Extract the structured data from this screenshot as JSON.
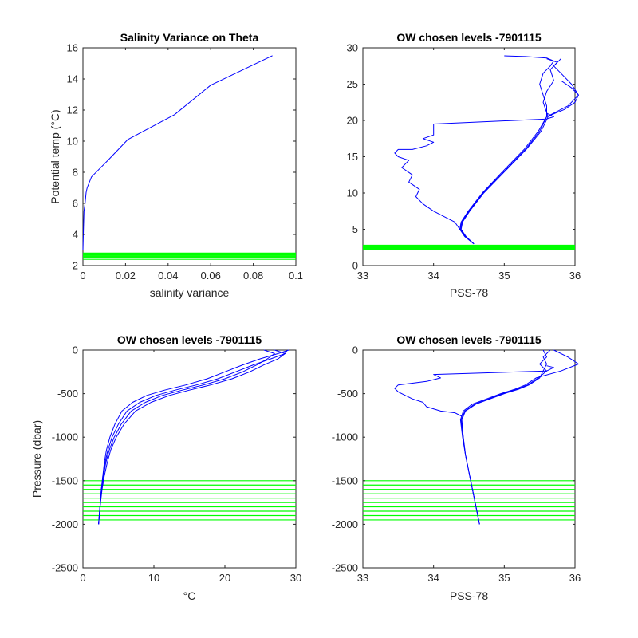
{
  "chart_data": [
    {
      "type": "line",
      "title": "Salinity Variance on Theta",
      "xlabel": "salinity variance",
      "ylabel": "Potential temp (°C)",
      "xlim": [
        0,
        0.1
      ],
      "ylim": [
        2,
        16
      ],
      "xticks": [
        0,
        0.02,
        0.04,
        0.06,
        0.08,
        0.1
      ],
      "xtick_labels": [
        "0",
        "0.02",
        "0.04",
        "0.06",
        "0.08",
        "0.1"
      ],
      "yticks": [
        2,
        4,
        6,
        8,
        10,
        12,
        14,
        16
      ],
      "ytick_labels": [
        "2",
        "4",
        "6",
        "8",
        "10",
        "12",
        "14",
        "16"
      ],
      "series": [
        {
          "color": "#0000ff",
          "x": [
            0.0,
            0.0002,
            0.0005,
            0.001,
            0.0015,
            0.002,
            0.004,
            0.012,
            0.021,
            0.043,
            0.06,
            0.089
          ],
          "y": [
            3.0,
            4.0,
            5.5,
            6.0,
            6.7,
            7.0,
            7.7,
            8.8,
            10.1,
            11.7,
            13.6,
            15.5
          ]
        }
      ],
      "hlines": {
        "color": "#00ff00",
        "values": [
          2.4,
          2.5,
          2.55,
          2.6,
          2.65,
          2.7,
          2.75,
          2.8
        ]
      }
    },
    {
      "type": "line",
      "title": "OW chosen levels -7901115",
      "xlabel": "PSS-78",
      "ylabel": "",
      "xlim": [
        33,
        36
      ],
      "ylim": [
        0,
        30
      ],
      "xticks": [
        33,
        34,
        35,
        36
      ],
      "xtick_labels": [
        "33",
        "34",
        "35",
        "36"
      ],
      "yticks": [
        0,
        5,
        10,
        15,
        20,
        25,
        30
      ],
      "ytick_labels": [
        "0",
        "5",
        "10",
        "15",
        "20",
        "25",
        "30"
      ],
      "series": [
        {
          "color": "#0000ff",
          "x": [
            34.57,
            34.45,
            34.38,
            34.4,
            34.5,
            34.7,
            35.0,
            35.3,
            35.5,
            35.6,
            35.6,
            35.55,
            35.5,
            35.55,
            35.65,
            35.7,
            35.6,
            35.3,
            35.0
          ],
          "y": [
            3.0,
            4.0,
            5.0,
            6.0,
            7.5,
            10.0,
            13.0,
            16.0,
            18.5,
            20.5,
            22.0,
            23.5,
            25.0,
            26.5,
            27.5,
            28.2,
            28.6,
            28.8,
            28.9
          ]
        },
        {
          "color": "#0000ff",
          "x": [
            34.57,
            34.44,
            34.37,
            34.39,
            34.49,
            34.69,
            34.98,
            35.28,
            35.48,
            35.6,
            35.9,
            36.05,
            35.95,
            35.8,
            35.7,
            35.75,
            35.6
          ],
          "y": [
            3.0,
            4.0,
            5.0,
            6.0,
            7.5,
            10.0,
            13.0,
            16.0,
            18.5,
            20.5,
            22.0,
            23.5,
            25.0,
            26.5,
            27.5,
            28.0,
            28.5
          ]
        },
        {
          "color": "#0000ff",
          "x": [
            34.57,
            34.46,
            34.39,
            34.41,
            34.51,
            34.71,
            35.01,
            35.31,
            35.52,
            35.62,
            35.55,
            35.6,
            35.7,
            35.65,
            35.8
          ],
          "y": [
            3.0,
            4.0,
            5.0,
            6.0,
            7.5,
            10.0,
            13.0,
            16.0,
            18.5,
            20.5,
            22.5,
            24.0,
            25.5,
            27.0,
            28.5
          ]
        },
        {
          "color": "#0000ff",
          "x": [
            34.57,
            34.45,
            34.37,
            34.3,
            34.2,
            34.0,
            33.85,
            33.75,
            33.8,
            33.65,
            33.7,
            33.55,
            33.65,
            33.5,
            33.45,
            33.5,
            33.7,
            33.9,
            34.0,
            33.85,
            34.0,
            34.0,
            35.6,
            35.7,
            35.6
          ],
          "y": [
            3.0,
            4.0,
            5.0,
            6.0,
            6.5,
            7.5,
            8.5,
            9.5,
            10.5,
            11.5,
            12.5,
            13.5,
            14.5,
            15.0,
            15.5,
            16.0,
            16.0,
            16.5,
            17.0,
            17.5,
            18.0,
            19.5,
            20.2,
            20.5,
            21.0
          ]
        },
        {
          "color": "#0000ff",
          "x": [
            35.6,
            35.85,
            36.0,
            36.05,
            35.95,
            35.8
          ],
          "y": [
            20.5,
            21.5,
            22.5,
            23.5,
            24.5,
            25.5
          ]
        }
      ],
      "hlines": {
        "color": "#00ff00",
        "values": [
          2.2,
          2.3,
          2.4,
          2.5,
          2.6,
          2.7,
          2.8
        ]
      }
    },
    {
      "type": "line",
      "title": "OW chosen levels -7901115",
      "xlabel": "°C",
      "ylabel": "Pressure (dbar)",
      "xlim": [
        0,
        30
      ],
      "ylim": [
        -2500,
        0
      ],
      "xticks": [
        0,
        10,
        20,
        30
      ],
      "xtick_labels": [
        "0",
        "10",
        "20",
        "30"
      ],
      "yticks": [
        -2500,
        -2000,
        -1500,
        -1000,
        -500,
        0
      ],
      "ytick_labels": [
        "-2500",
        "-2000",
        "-1500",
        "-1000",
        "-500",
        "0"
      ],
      "series": [
        {
          "color": "#0000ff",
          "x": [
            2.2,
            2.4,
            2.6,
            2.8,
            3.0,
            3.3,
            3.8,
            4.5,
            5.5,
            7.0,
            9.0,
            11.5,
            14.5,
            17.5,
            20.0,
            22.5,
            25.0,
            27.5,
            29.0
          ],
          "y": [
            -2000,
            -1800,
            -1600,
            -1450,
            -1300,
            -1150,
            -1000,
            -850,
            -700,
            -600,
            -520,
            -460,
            -400,
            -330,
            -250,
            -170,
            -100,
            -40,
            0
          ]
        },
        {
          "color": "#0000ff",
          "x": [
            2.2,
            2.4,
            2.6,
            2.8,
            3.1,
            3.5,
            4.1,
            5.0,
            6.2,
            8.0,
            10.3,
            13.0,
            16.0,
            19.0,
            21.5,
            24.0,
            26.5,
            28.5,
            28.8
          ],
          "y": [
            -2000,
            -1800,
            -1600,
            -1450,
            -1300,
            -1150,
            -1000,
            -850,
            -700,
            -600,
            -520,
            -460,
            -400,
            -330,
            -250,
            -170,
            -100,
            -40,
            0
          ]
        },
        {
          "color": "#0000ff",
          "x": [
            2.2,
            2.4,
            2.6,
            2.9,
            3.2,
            3.7,
            4.4,
            5.4,
            6.8,
            8.8,
            11.2,
            14.0,
            17.0,
            20.0,
            22.5,
            24.5,
            26.0,
            27.0,
            25.5
          ],
          "y": [
            -2000,
            -1800,
            -1600,
            -1450,
            -1300,
            -1150,
            -1000,
            -850,
            -700,
            -600,
            -520,
            -460,
            -400,
            -330,
            -250,
            -170,
            -100,
            -40,
            0
          ]
        },
        {
          "color": "#0000ff",
          "x": [
            2.2,
            2.4,
            2.7,
            3.0,
            3.4,
            3.9,
            4.7,
            5.8,
            7.4,
            9.6,
            12.2,
            15.0,
            18.0,
            21.0,
            23.5,
            25.5,
            27.5,
            28.5,
            27.0
          ],
          "y": [
            -2000,
            -1800,
            -1600,
            -1450,
            -1300,
            -1150,
            -1000,
            -850,
            -700,
            -600,
            -520,
            -460,
            -400,
            -330,
            -250,
            -170,
            -100,
            -40,
            0
          ]
        }
      ],
      "hlines": {
        "color": "#00ff00",
        "values": [
          -1500,
          -1550,
          -1600,
          -1650,
          -1700,
          -1750,
          -1800,
          -1850,
          -1900,
          -1950
        ]
      }
    },
    {
      "type": "line",
      "title": "OW chosen levels -7901115",
      "xlabel": "PSS-78",
      "ylabel": "",
      "xlim": [
        33,
        36
      ],
      "ylim": [
        -2500,
        0
      ],
      "xticks": [
        33,
        34,
        35,
        36
      ],
      "xtick_labels": [
        "33",
        "34",
        "35",
        "36"
      ],
      "yticks": [
        -2500,
        -2000,
        -1500,
        -1000,
        -500,
        0
      ],
      "ytick_labels": [
        "-2500",
        "-2000",
        "-1500",
        "-1000",
        "-500",
        "0"
      ],
      "series": [
        {
          "color": "#0000ff",
          "x": [
            34.65,
            34.6,
            34.55,
            34.5,
            34.45,
            34.42,
            34.4,
            34.45,
            34.6,
            34.8,
            35.0,
            35.2,
            35.35,
            35.5,
            35.55,
            35.6,
            35.55,
            35.65
          ],
          "y": [
            -2000,
            -1800,
            -1600,
            -1400,
            -1200,
            -1000,
            -800,
            -700,
            -620,
            -560,
            -500,
            -450,
            -400,
            -320,
            -240,
            -160,
            -80,
            0
          ]
        },
        {
          "color": "#0000ff",
          "x": [
            34.65,
            34.6,
            34.55,
            34.5,
            34.45,
            34.41,
            34.38,
            34.42,
            34.55,
            34.75,
            34.95,
            35.15,
            35.3,
            35.45,
            35.8,
            36.05,
            35.9,
            35.7
          ],
          "y": [
            -2000,
            -1800,
            -1600,
            -1400,
            -1200,
            -1000,
            -800,
            -700,
            -620,
            -560,
            -500,
            -450,
            -400,
            -320,
            -240,
            -160,
            -80,
            0
          ]
        },
        {
          "color": "#0000ff",
          "x": [
            34.65,
            34.6,
            34.55,
            34.5,
            34.45,
            34.42,
            34.39,
            34.44,
            34.58,
            34.78,
            34.98,
            35.18,
            35.33,
            35.48,
            35.6,
            35.5,
            35.6,
            35.55
          ],
          "y": [
            -2000,
            -1800,
            -1600,
            -1400,
            -1200,
            -1000,
            -800,
            -700,
            -620,
            -560,
            -500,
            -450,
            -400,
            -320,
            -240,
            -160,
            -80,
            0
          ]
        },
        {
          "color": "#0000ff",
          "x": [
            34.4,
            34.3,
            34.1,
            33.9,
            33.85,
            33.7,
            33.6,
            33.5,
            33.45,
            33.5,
            33.7,
            33.9,
            34.0,
            34.1,
            34.0,
            35.6,
            35.7,
            35.6
          ],
          "y": [
            -760,
            -720,
            -700,
            -650,
            -600,
            -560,
            -520,
            -480,
            -440,
            -400,
            -380,
            -360,
            -340,
            -320,
            -280,
            -240,
            -200,
            -180
          ]
        }
      ],
      "hlines": {
        "color": "#00ff00",
        "values": [
          -1500,
          -1550,
          -1600,
          -1650,
          -1700,
          -1750,
          -1800,
          -1850,
          -1900,
          -1950
        ]
      }
    }
  ]
}
